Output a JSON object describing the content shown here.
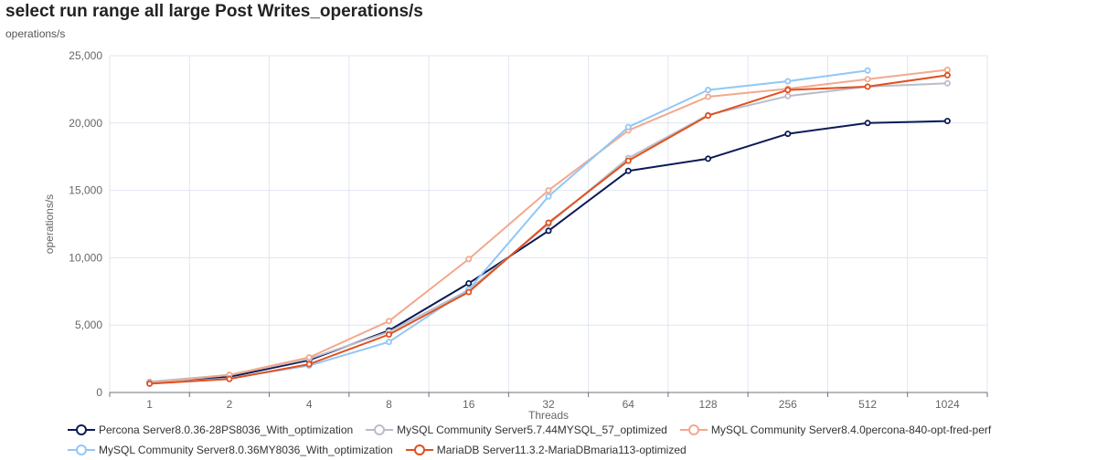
{
  "title": "select run range all large Post Writes_operations/s",
  "subtitle": "operations/s",
  "chart_data": {
    "type": "line",
    "xlabel": "Threads",
    "ylabel": "operations/s",
    "categories": [
      "1",
      "2",
      "4",
      "8",
      "16",
      "32",
      "64",
      "128",
      "256",
      "512",
      "1024"
    ],
    "ylim": [
      0,
      25000
    ],
    "yticks": [
      0,
      5000,
      10000,
      15000,
      20000,
      25000
    ],
    "ytick_labels": [
      "0",
      "5,000",
      "10,000",
      "15,000",
      "20,000",
      "25,000"
    ],
    "grid": true,
    "legend_position": "bottom",
    "series": [
      {
        "name": "Percona Server8.0.36-28PS8036_With_optimization",
        "color": "#0c1a56",
        "values": [
          750,
          1150,
          2400,
          4600,
          8100,
          12000,
          16450,
          17350,
          19200,
          20000,
          20150
        ]
      },
      {
        "name": "MySQL Community Server5.7.44MYSQL_57_optimized",
        "color": "#b9bdc9",
        "values": [
          800,
          1300,
          2500,
          4500,
          7600,
          12500,
          17400,
          20600,
          22000,
          22700,
          22950
        ]
      },
      {
        "name": "MySQL Community Server8.4.0percona-840-opt-fred-perf",
        "color": "#f2a98e",
        "values": [
          700,
          1300,
          2600,
          5300,
          9900,
          15000,
          19450,
          21950,
          22550,
          23250,
          23950
        ]
      },
      {
        "name": "MySQL Community Server8.0.36MY8036_With_optimization",
        "color": "#92c7f6",
        "values": [
          650,
          1050,
          2000,
          3750,
          7650,
          14550,
          19700,
          22450,
          23100,
          23900,
          null
        ]
      },
      {
        "name": "MariaDB Server11.3.2-MariaDBmaria113-optimized",
        "color": "#e1501f",
        "values": [
          650,
          1000,
          2100,
          4300,
          7450,
          12600,
          17200,
          20550,
          22450,
          22700,
          23550
        ]
      }
    ]
  }
}
